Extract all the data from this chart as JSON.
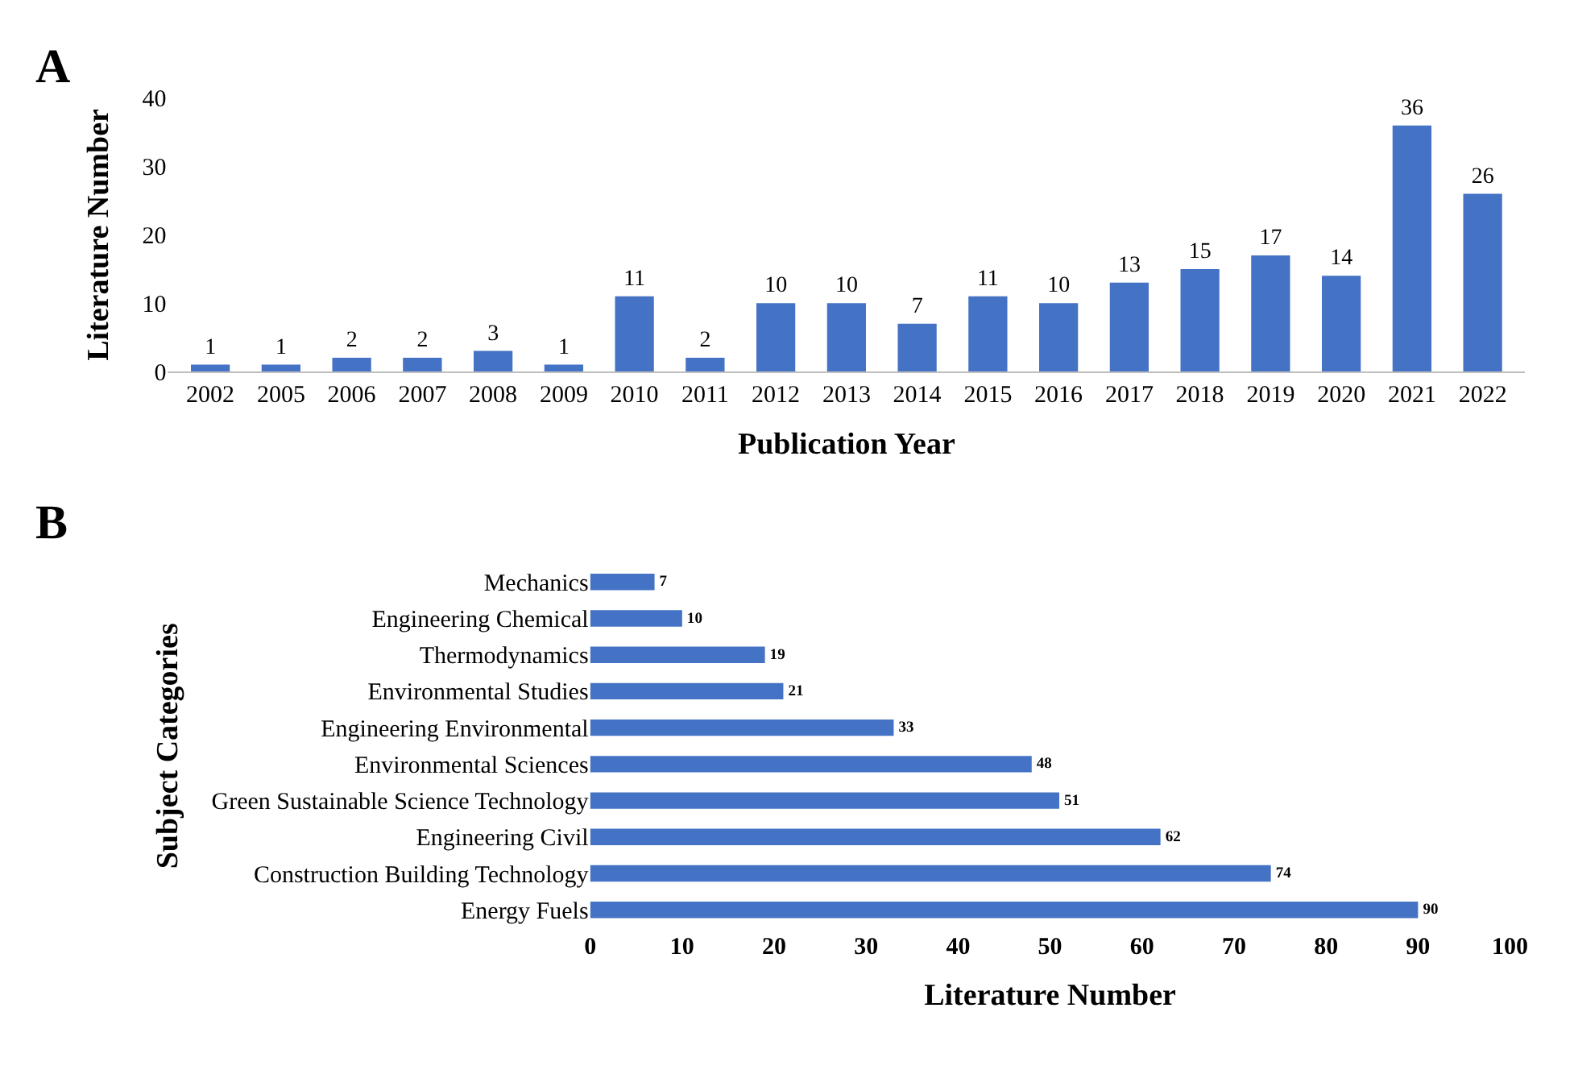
{
  "chart_data": [
    {
      "type": "bar",
      "annotations": [
        "A"
      ],
      "xlabel": "Publication Year",
      "ylabel": "Literature Number",
      "categories": [
        "2002",
        "2005",
        "2006",
        "2007",
        "2008",
        "2009",
        "2010",
        "2011",
        "2012",
        "2013",
        "2014",
        "2015",
        "2016",
        "2017",
        "2018",
        "2019",
        "2020",
        "2021",
        "2022"
      ],
      "values": [
        1,
        1,
        2,
        2,
        3,
        1,
        11,
        2,
        10,
        10,
        7,
        11,
        10,
        13,
        15,
        17,
        14,
        36,
        26
      ],
      "color": "#4472c4",
      "ylim": [
        0,
        40
      ],
      "yticks": [
        0,
        10,
        20,
        30,
        40
      ],
      "data_labels": true
    },
    {
      "type": "bar",
      "orientation": "horizontal",
      "annotations": [
        "B"
      ],
      "xlabel": "Literature Number",
      "ylabel": "Subject Categories",
      "categories": [
        "Mechanics",
        "Engineering Chemical",
        "Thermodynamics",
        "Environmental Studies",
        "Engineering Environmental",
        "Environmental Sciences",
        "Green Sustainable Science Technology",
        "Engineering Civil",
        "Construction Building Technology",
        "Energy Fuels"
      ],
      "values": [
        7,
        10,
        19,
        21,
        33,
        48,
        51,
        62,
        74,
        90
      ],
      "color": "#4472c4",
      "xlim": [
        0,
        100
      ],
      "xticks": [
        0,
        10,
        20,
        30,
        40,
        50,
        60,
        70,
        80,
        90,
        100
      ],
      "data_labels": true
    }
  ]
}
